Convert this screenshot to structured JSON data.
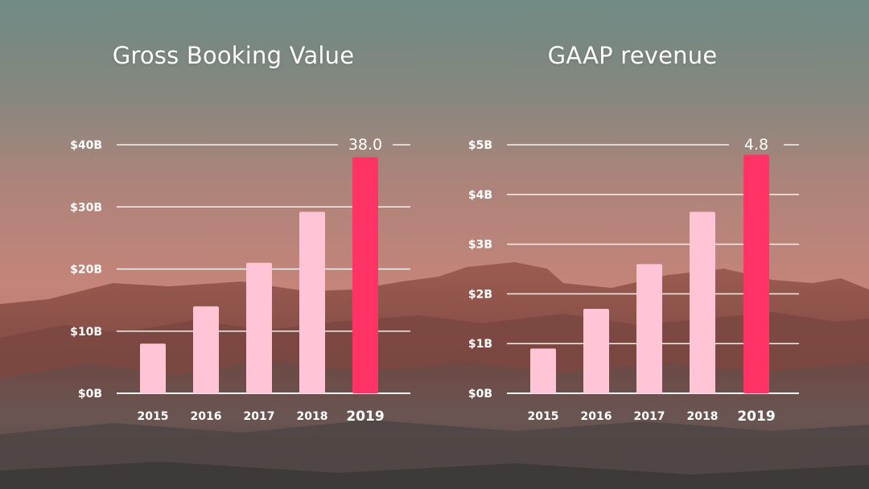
{
  "colors": {
    "bar": "#ffc4d6",
    "highlight_bar": "#ff3366",
    "gridline": "#f2f2f2",
    "text": "#ffffff"
  },
  "chart_data": [
    {
      "type": "bar",
      "title": "Gross Booking Value",
      "categories": [
        "2015",
        "2016",
        "2017",
        "2018",
        "2019"
      ],
      "values": [
        8,
        14,
        21,
        29.2,
        38.0
      ],
      "highlight_index": 4,
      "data_labels": [
        {
          "index": 4,
          "text": "38.0"
        }
      ],
      "yticks": [
        {
          "value": 0,
          "label": "$0B"
        },
        {
          "value": 10,
          "label": "$10B"
        },
        {
          "value": 20,
          "label": "$20B"
        },
        {
          "value": 30,
          "label": "$30B"
        },
        {
          "value": 40,
          "label": "$40B"
        }
      ],
      "ylim": [
        0,
        40
      ],
      "unit": "billion USD",
      "grid": true,
      "legend": "none"
    },
    {
      "type": "bar",
      "title": "GAAP revenue",
      "categories": [
        "2015",
        "2016",
        "2017",
        "2018",
        "2019"
      ],
      "values": [
        0.9,
        1.7,
        2.6,
        3.65,
        4.8
      ],
      "highlight_index": 4,
      "data_labels": [
        {
          "index": 4,
          "text": "4.8"
        }
      ],
      "yticks": [
        {
          "value": 0,
          "label": "$0B"
        },
        {
          "value": 1,
          "label": "$1B"
        },
        {
          "value": 2,
          "label": "$2B"
        },
        {
          "value": 3,
          "label": "$3B"
        },
        {
          "value": 4,
          "label": "$4B"
        },
        {
          "value": 5,
          "label": "$5B"
        }
      ],
      "ylim": [
        0,
        5
      ],
      "unit": "billion USD",
      "grid": true,
      "legend": "none"
    }
  ]
}
